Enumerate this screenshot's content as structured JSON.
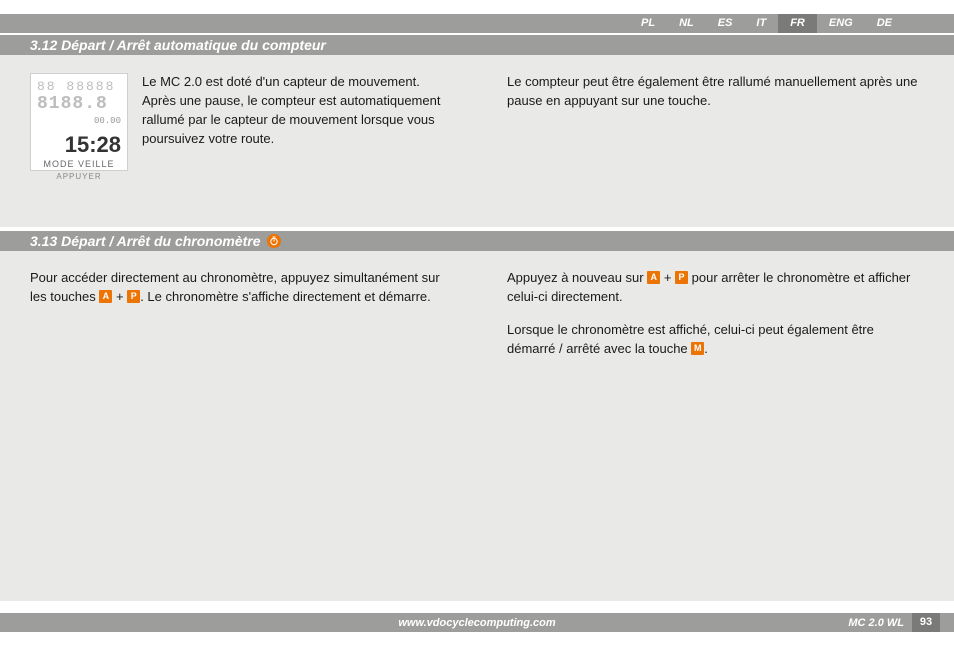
{
  "langs": [
    "PL",
    "NL",
    "ES",
    "IT",
    "FR",
    "ENG",
    "DE"
  ],
  "activeLang": "FR",
  "section1": {
    "title": "3.12 Départ / Arrêt automatique du compteur",
    "leftText": "Le MC 2.0 est doté d'un capteur de mouvement. Après une pause, le compteur est automatiquement rallumé par le capteur de mouvement lorsque vous poursuivez votre route.",
    "rightText": "Le compteur peut être également être rallumé manuellement après une pause en appuyant sur une touche.",
    "lcd": {
      "time": "15:28",
      "sleep": "MODE VEILLE",
      "app": "APPUYER"
    }
  },
  "section2": {
    "title": "3.13 Départ / Arrêt du chronomètre",
    "left_a": "Pour accéder directement au chronomètre, appuyez simultanément sur les touches ",
    "left_b": " + ",
    "left_c": ". Le chronomètre s'affiche directement et démarre.",
    "right1_a": "Appuyez à nouveau sur ",
    "right1_b": " + ",
    "right1_c": " pour arrêter le chronomètre et afficher celui-ci directement.",
    "right2_a": "Lorsque le chronomètre est affiché, celui-ci peut également être démarré / arrêté avec la touche ",
    "right2_b": "."
  },
  "keys": {
    "A": "A",
    "P": "P",
    "M": "M"
  },
  "footer": {
    "url": "www.vdocyclecomputing.com",
    "model": "MC 2.0 WL",
    "page": "93"
  },
  "colors": {
    "grey": "#9d9d9c",
    "activeGrey": "#7a7a79",
    "orange": "#ec7404",
    "bg": "#e9e9e8"
  }
}
